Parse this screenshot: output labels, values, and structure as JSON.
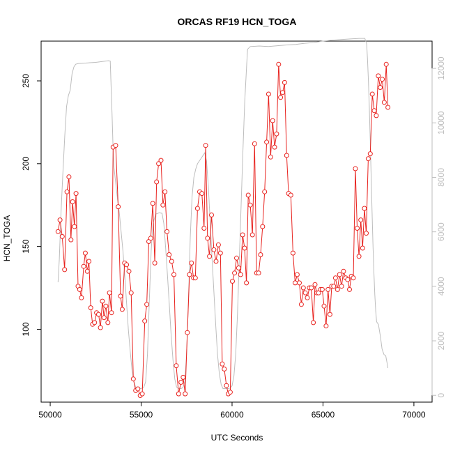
{
  "chart_data": {
    "type": "line",
    "title": "ORCAS RF19 HCN_TOGA",
    "xlabel": "UTC Seconds",
    "ylabel": "HCN_TOGA",
    "xlim": [
      49500,
      71000
    ],
    "ylim": [
      56,
      274
    ],
    "y2lim": [
      -250,
      13000
    ],
    "x_ticks": [
      50000,
      55000,
      60000,
      65000,
      70000
    ],
    "y_ticks": [
      100,
      150,
      200,
      250
    ],
    "y2_ticks": [
      0,
      2000,
      4000,
      6000,
      8000,
      10000,
      12000
    ],
    "grid": false,
    "colors": {
      "hcn": "#e8231f",
      "altitude": "#bdbdbd"
    },
    "series": [
      {
        "style": "line-points",
        "axis": "left",
        "color": "#e8231f",
        "points": [
          [
            50430,
            159
          ],
          [
            50540,
            166
          ],
          [
            50660,
            156
          ],
          [
            50790,
            136
          ],
          [
            50920,
            183
          ],
          [
            51030,
            192
          ],
          [
            51140,
            154
          ],
          [
            51230,
            177
          ],
          [
            51330,
            162
          ],
          [
            51420,
            182
          ],
          [
            51530,
            126
          ],
          [
            51620,
            124
          ],
          [
            51720,
            119
          ],
          [
            51840,
            138
          ],
          [
            51930,
            146
          ],
          [
            52040,
            135
          ],
          [
            52130,
            141
          ],
          [
            52230,
            113
          ],
          [
            52330,
            103
          ],
          [
            52440,
            104
          ],
          [
            52550,
            110
          ],
          [
            52660,
            109
          ],
          [
            52760,
            101
          ],
          [
            52870,
            117
          ],
          [
            52960,
            107
          ],
          [
            53060,
            114
          ],
          [
            53170,
            104
          ],
          [
            53260,
            122
          ],
          [
            53370,
            110
          ],
          [
            53460,
            210
          ],
          [
            53600,
            211
          ],
          [
            53740,
            174
          ],
          [
            53870,
            120
          ],
          [
            53960,
            112
          ],
          [
            54090,
            140
          ],
          [
            54200,
            139
          ],
          [
            54330,
            135
          ],
          [
            54450,
            122
          ],
          [
            54570,
            70
          ],
          [
            54700,
            63
          ],
          [
            54820,
            64
          ],
          [
            54950,
            60
          ],
          [
            55060,
            61
          ],
          [
            55200,
            105
          ],
          [
            55310,
            115
          ],
          [
            55420,
            153
          ],
          [
            55530,
            155
          ],
          [
            55640,
            176
          ],
          [
            55750,
            140
          ],
          [
            55850,
            189
          ],
          [
            55960,
            200
          ],
          [
            56090,
            202
          ],
          [
            56200,
            175
          ],
          [
            56310,
            183
          ],
          [
            56420,
            159
          ],
          [
            56540,
            145
          ],
          [
            56680,
            141
          ],
          [
            56800,
            133
          ],
          [
            56930,
            78
          ],
          [
            57060,
            61
          ],
          [
            57190,
            68
          ],
          [
            57310,
            71
          ],
          [
            57420,
            61
          ],
          [
            57540,
            98
          ],
          [
            57660,
            133
          ],
          [
            57770,
            140
          ],
          [
            57880,
            131
          ],
          [
            57980,
            131
          ],
          [
            58100,
            173
          ],
          [
            58220,
            183
          ],
          [
            58340,
            182
          ],
          [
            58460,
            161
          ],
          [
            58550,
            211
          ],
          [
            58650,
            155
          ],
          [
            58760,
            144
          ],
          [
            58870,
            169
          ],
          [
            59000,
            148
          ],
          [
            59120,
            141
          ],
          [
            59250,
            151
          ],
          [
            59360,
            146
          ],
          [
            59460,
            79
          ],
          [
            59570,
            76
          ],
          [
            59690,
            66
          ],
          [
            59790,
            61
          ],
          [
            59900,
            62
          ],
          [
            60020,
            129
          ],
          [
            60140,
            134
          ],
          [
            60250,
            143
          ],
          [
            60360,
            137
          ],
          [
            60470,
            133
          ],
          [
            60580,
            157
          ],
          [
            60690,
            149
          ],
          [
            60790,
            128
          ],
          [
            60890,
            181
          ],
          [
            61000,
            175
          ],
          [
            61120,
            157
          ],
          [
            61240,
            212
          ],
          [
            61350,
            134
          ],
          [
            61460,
            134
          ],
          [
            61570,
            145
          ],
          [
            61680,
            162
          ],
          [
            61790,
            183
          ],
          [
            61900,
            213
          ],
          [
            62010,
            242
          ],
          [
            62120,
            204
          ],
          [
            62230,
            226
          ],
          [
            62340,
            210
          ],
          [
            62450,
            218
          ],
          [
            62560,
            260
          ],
          [
            62670,
            240
          ],
          [
            62780,
            243
          ],
          [
            62890,
            249
          ],
          [
            63000,
            205
          ],
          [
            63110,
            182
          ],
          [
            63230,
            181
          ],
          [
            63350,
            146
          ],
          [
            63470,
            128
          ],
          [
            63580,
            133
          ],
          [
            63700,
            128
          ],
          [
            63810,
            115
          ],
          [
            63920,
            125
          ],
          [
            64030,
            122
          ],
          [
            64140,
            119
          ],
          [
            64250,
            125
          ],
          [
            64360,
            125
          ],
          [
            64470,
            104
          ],
          [
            64560,
            127
          ],
          [
            64660,
            122
          ],
          [
            64760,
            122
          ],
          [
            64870,
            124
          ],
          [
            64960,
            124
          ],
          [
            65060,
            114
          ],
          [
            65170,
            102
          ],
          [
            65280,
            124
          ],
          [
            65380,
            109
          ],
          [
            65480,
            126
          ],
          [
            65590,
            126
          ],
          [
            65690,
            131
          ],
          [
            65800,
            124
          ],
          [
            65910,
            133
          ],
          [
            66020,
            126
          ],
          [
            66130,
            135
          ],
          [
            66250,
            131
          ],
          [
            66360,
            130
          ],
          [
            66460,
            124
          ],
          [
            66560,
            132
          ],
          [
            66670,
            131
          ],
          [
            66780,
            197
          ],
          [
            66880,
            161
          ],
          [
            66980,
            144
          ],
          [
            67080,
            166
          ],
          [
            67180,
            149
          ],
          [
            67280,
            173
          ],
          [
            67380,
            158
          ],
          [
            67490,
            203
          ],
          [
            67600,
            206
          ],
          [
            67710,
            242
          ],
          [
            67820,
            232
          ],
          [
            67930,
            229
          ],
          [
            68040,
            253
          ],
          [
            68150,
            246
          ],
          [
            68260,
            251
          ],
          [
            68370,
            237
          ],
          [
            68480,
            260
          ],
          [
            68570,
            234
          ]
        ]
      },
      {
        "style": "line",
        "axis": "right",
        "color": "#bdbdbd",
        "points": [
          [
            50430,
            4150
          ],
          [
            50500,
            5000
          ],
          [
            50600,
            6800
          ],
          [
            50700,
            8200
          ],
          [
            50800,
            9500
          ],
          [
            50900,
            10600
          ],
          [
            51000,
            11000
          ],
          [
            51100,
            11200
          ],
          [
            51200,
            11800
          ],
          [
            51300,
            12050
          ],
          [
            51400,
            12150
          ],
          [
            51550,
            12180
          ],
          [
            51800,
            12190
          ],
          [
            52500,
            12220
          ],
          [
            53200,
            12280
          ],
          [
            53300,
            12270
          ],
          [
            53400,
            10300
          ],
          [
            53450,
            9200
          ],
          [
            53500,
            8400
          ],
          [
            53600,
            7800
          ],
          [
            53700,
            7200
          ],
          [
            53800,
            6700
          ],
          [
            53900,
            6000
          ],
          [
            54000,
            5300
          ],
          [
            54100,
            4400
          ],
          [
            54200,
            3400
          ],
          [
            54300,
            2400
          ],
          [
            54400,
            1600
          ],
          [
            54500,
            900
          ],
          [
            54600,
            500
          ],
          [
            54700,
            300
          ],
          [
            54800,
            250
          ],
          [
            54900,
            250
          ],
          [
            55000,
            250
          ],
          [
            55150,
            300
          ],
          [
            55250,
            500
          ],
          [
            55350,
            1500
          ],
          [
            55450,
            3500
          ],
          [
            55550,
            5300
          ],
          [
            55650,
            6300
          ],
          [
            55800,
            6650
          ],
          [
            56000,
            6700
          ],
          [
            56150,
            6680
          ],
          [
            56250,
            6300
          ],
          [
            56350,
            5400
          ],
          [
            56450,
            4400
          ],
          [
            56550,
            3300
          ],
          [
            56650,
            2200
          ],
          [
            56750,
            1300
          ],
          [
            56850,
            600
          ],
          [
            56950,
            300
          ],
          [
            57050,
            250
          ],
          [
            57200,
            250
          ],
          [
            57300,
            280
          ],
          [
            57400,
            500
          ],
          [
            57500,
            1500
          ],
          [
            57600,
            3500
          ],
          [
            57700,
            5800
          ],
          [
            57800,
            7300
          ],
          [
            57900,
            8000
          ],
          [
            58000,
            8300
          ],
          [
            58100,
            8500
          ],
          [
            58200,
            8600
          ],
          [
            58300,
            8700
          ],
          [
            58400,
            8800
          ],
          [
            58500,
            8900
          ],
          [
            58600,
            8600
          ],
          [
            58700,
            7600
          ],
          [
            58800,
            6300
          ],
          [
            58900,
            5000
          ],
          [
            59000,
            3800
          ],
          [
            59100,
            2600
          ],
          [
            59200,
            1500
          ],
          [
            59300,
            800
          ],
          [
            59400,
            400
          ],
          [
            59500,
            250
          ],
          [
            59650,
            250
          ],
          [
            59800,
            250
          ],
          [
            59900,
            270
          ],
          [
            60000,
            350
          ],
          [
            60100,
            700
          ],
          [
            60200,
            1500
          ],
          [
            60300,
            3000
          ],
          [
            60400,
            5000
          ],
          [
            60500,
            7000
          ],
          [
            60600,
            9000
          ],
          [
            60700,
            10800
          ],
          [
            60800,
            12100
          ],
          [
            60850,
            12700
          ],
          [
            61000,
            12800
          ],
          [
            61500,
            12820
          ],
          [
            62000,
            12800
          ],
          [
            62500,
            12830
          ],
          [
            63000,
            12860
          ],
          [
            63500,
            12880
          ],
          [
            64000,
            12920
          ],
          [
            64500,
            12950
          ],
          [
            65000,
            13000
          ],
          [
            65500,
            13030
          ],
          [
            66000,
            13060
          ],
          [
            66500,
            13080
          ],
          [
            67000,
            13100
          ],
          [
            67300,
            13100
          ],
          [
            67400,
            12900
          ],
          [
            67450,
            12300
          ],
          [
            67500,
            11500
          ],
          [
            67550,
            10500
          ],
          [
            67600,
            9300
          ],
          [
            67650,
            8000
          ],
          [
            67700,
            6700
          ],
          [
            67750,
            5500
          ],
          [
            67800,
            4500
          ],
          [
            67850,
            3700
          ],
          [
            67900,
            3100
          ],
          [
            67950,
            2700
          ],
          [
            68050,
            2600
          ],
          [
            68150,
            2200
          ],
          [
            68250,
            1700
          ],
          [
            68350,
            1500
          ],
          [
            68450,
            1450
          ],
          [
            68520,
            1200
          ],
          [
            68570,
            1000
          ]
        ]
      }
    ]
  }
}
